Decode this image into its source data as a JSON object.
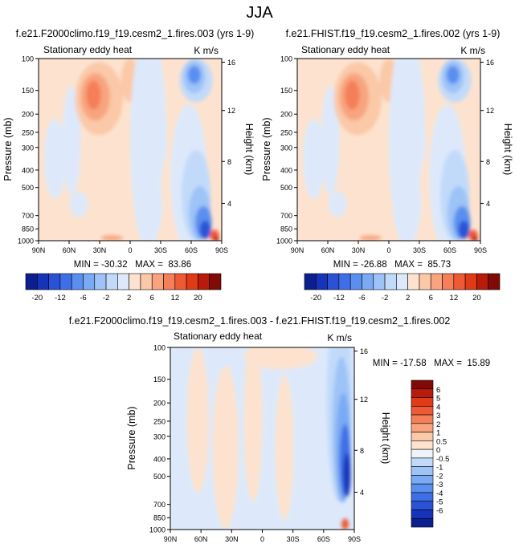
{
  "page_title": "JJA",
  "colors": {
    "top_palette": [
      "#0b1f8f",
      "#1734b8",
      "#2b52d6",
      "#3f6fe6",
      "#5a8ff0",
      "#7aaaf4",
      "#9dc3f7",
      "#c2dafa",
      "#dde9fb",
      "#fde3cf",
      "#fbc8a8",
      "#f8a47f",
      "#f47f58",
      "#ee5a35",
      "#e03a17",
      "#b81a0c",
      "#7f0a06"
    ],
    "bottom_palette": [
      "#0b1f8f",
      "#1734b8",
      "#2b52d6",
      "#3f6fe6",
      "#5a8ff0",
      "#7aaaf4",
      "#9dc3f7",
      "#c2dafa",
      "#eef4fb",
      "#fde3cf",
      "#fbc8a8",
      "#f8a47f",
      "#f47f58",
      "#ee5a35",
      "#e03a17",
      "#b81a0c",
      "#7f0a06"
    ]
  },
  "chart_data": [
    {
      "type": "heatmap",
      "title": "f.e21.F2000climo.f19_f19.cesm2_1.fires.003 (yrs 1-9)",
      "left_string": "Stationary eddy heat",
      "right_string": "K m/s",
      "xlabel": "",
      "ylabel": "Pressure (mb)",
      "y2label": "Height (km)",
      "x_ticks": [
        "90N",
        "60N",
        "30N",
        "0",
        "30S",
        "60S",
        "90S"
      ],
      "y_ticks": [
        "100",
        "150",
        "200",
        "250",
        "300",
        "400",
        "500",
        "700",
        "850",
        "1000"
      ],
      "y2_ticks": [
        "16",
        "12",
        "8",
        "4"
      ],
      "stats": "MIN = -30.32   MAX =  83.86",
      "min": -30.32,
      "max": 83.86
    },
    {
      "type": "heatmap",
      "title": "f.e21.FHIST.f19_f19.cesm2_1.fires.002 (yrs 1-9)",
      "left_string": "Stationary eddy heat",
      "right_string": "K m/s",
      "xlabel": "",
      "ylabel": "Pressure (mb)",
      "y2label": "Height (km)",
      "x_ticks": [
        "90N",
        "60N",
        "30N",
        "0",
        "30S",
        "60S",
        "90S"
      ],
      "y_ticks": [
        "100",
        "150",
        "200",
        "250",
        "300",
        "400",
        "500",
        "700",
        "850",
        "1000"
      ],
      "y2_ticks": [
        "16",
        "12",
        "8",
        "4"
      ],
      "stats": "MIN = -26.88   MAX =  85.73",
      "min": -26.88,
      "max": 85.73
    },
    {
      "type": "heatmap",
      "title": "f.e21.F2000climo.f19_f19.cesm2_1.fires.003 - f.e21.FHIST.f19_f19.cesm2_1.fires.002",
      "left_string": "Stationary eddy heat",
      "right_string": "K m/s",
      "xlabel": "",
      "ylabel": "Pressure (mb)",
      "y2label": "Height (km)",
      "x_ticks": [
        "90N",
        "60N",
        "30N",
        "0",
        "30S",
        "60S",
        "90S"
      ],
      "y_ticks": [
        "100",
        "150",
        "200",
        "250",
        "300",
        "400",
        "500",
        "700",
        "850",
        "1000"
      ],
      "y2_ticks": [
        "16",
        "12",
        "8",
        "4"
      ],
      "stats": "MIN = -17.58   MAX =  15.89",
      "min": -17.58,
      "max": 15.89
    }
  ],
  "colorbar_top": {
    "labels": [
      "-20",
      "-12",
      "-6",
      "-2",
      "2",
      "6",
      "12",
      "20"
    ]
  },
  "colorbar_bottom": {
    "labels": [
      "6",
      "5",
      "4",
      "3",
      "2",
      "1",
      "0.5",
      "0",
      "-0.5",
      "-1",
      "-2",
      "-3",
      "-4",
      "-5",
      "-6"
    ]
  }
}
